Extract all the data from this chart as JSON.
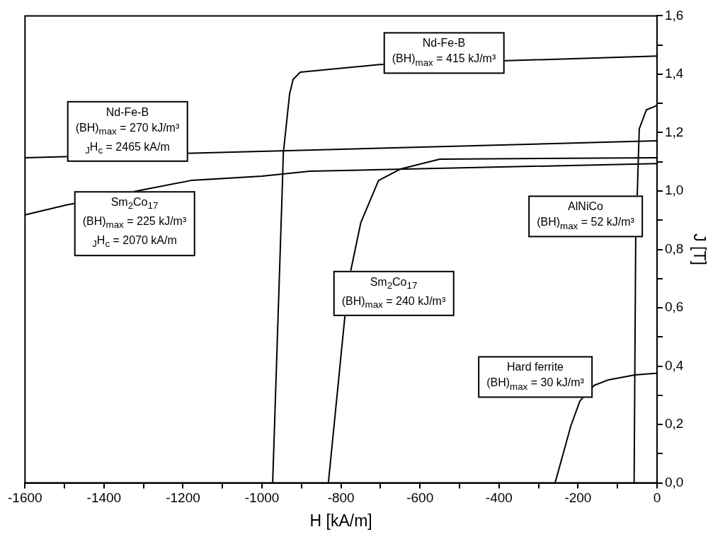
{
  "chart_data": {
    "type": "line",
    "xlabel": "H [kA/m]",
    "ylabel": "J [T]",
    "xlim": [
      -1600,
      0
    ],
    "ylim": [
      0,
      1.6
    ],
    "xticks": [
      -1600,
      {
        "value": -1500,
        "label": null
      },
      -1400,
      {
        "value": -1300,
        "label": null
      },
      -1200,
      {
        "value": -1100,
        "label": null
      },
      -1000,
      {
        "value": -900,
        "label": null
      },
      -800,
      {
        "value": -700,
        "label": null
      },
      -600,
      {
        "value": -500,
        "label": null
      },
      -400,
      {
        "value": -300,
        "label": null
      },
      -200,
      {
        "value": -100,
        "label": null
      },
      0
    ],
    "yticks": [
      {
        "value": 0,
        "label": "0,0"
      },
      {
        "value": 0.1,
        "label": null
      },
      {
        "value": 0.2,
        "label": "0,2"
      },
      {
        "value": 0.3,
        "label": null
      },
      {
        "value": 0.4,
        "label": "0,4"
      },
      {
        "value": 0.5,
        "label": null
      },
      {
        "value": 0.6,
        "label": "0,6"
      },
      {
        "value": 0.7,
        "label": null
      },
      {
        "value": 0.8,
        "label": "0,8"
      },
      {
        "value": 0.9,
        "label": null
      },
      {
        "value": 1.0,
        "label": "1,0"
      },
      {
        "value": 1.1,
        "label": null
      },
      {
        "value": 1.2,
        "label": "1,2"
      },
      {
        "value": 1.3,
        "label": null
      },
      {
        "value": 1.4,
        "label": "1,4"
      },
      {
        "value": 1.5,
        "label": null
      },
      {
        "value": 1.6,
        "label": "1,6"
      }
    ],
    "grid": false,
    "legend": false,
    "marker": "none",
    "line_style": "solid",
    "series": [
      {
        "color": "#000000",
        "x": [
          -973,
          -948,
          -946,
          -930,
          -921,
          -903,
          -703,
          0
        ],
        "values": [
          0,
          1.04,
          1.13,
          1.334,
          1.383,
          1.407,
          1.433,
          1.462
        ]
      },
      {
        "color": "#000000",
        "x": [
          -1600,
          0
        ],
        "values": [
          1.114,
          1.172
        ]
      },
      {
        "color": "#000000",
        "x": [
          -1600,
          -1495,
          -1317,
          -1180,
          -1000,
          -879,
          -699,
          0
        ],
        "values": [
          0.918,
          0.952,
          1.0,
          1.036,
          1.051,
          1.068,
          1.073,
          1.094
        ]
      },
      {
        "color": "#000000",
        "x": [
          -832,
          -791,
          -775,
          -750,
          -705,
          -650,
          -550,
          0
        ],
        "values": [
          0,
          0.559,
          0.729,
          0.891,
          1.036,
          1.075,
          1.109,
          1.114
        ]
      },
      {
        "color": "#000000",
        "x": [
          -58,
          -54,
          -50,
          -45,
          -27,
          -5,
          0
        ],
        "values": [
          0,
          0.83,
          0.988,
          1.213,
          1.278,
          1.29,
          1.295
        ]
      },
      {
        "color": "#000000",
        "x": [
          -258,
          -218,
          -195,
          -159,
          -123,
          -56,
          -5,
          0
        ],
        "values": [
          0,
          0.196,
          0.281,
          0.334,
          0.353,
          0.37,
          0.375,
          0.376
        ]
      }
    ],
    "annotations": [
      "Nd-Fe-B\n(BH)$_{max}$ = 415 kJ/m³",
      "Nd-Fe-B\n(BH)$_{max}$ = 270 kJ/m³\n$_{J}$H$_{c}$ = 2465 kA/m",
      "Sm$_{2}$Co$_{17}$\n(BH)$_{max}$ = 225 kJ/m³\n$_{J}$H$_{c}$ = 2070 kA/m",
      "AlNiCo\n(BH)$_{max}$ = 52 kJ/m³",
      "Sm$_{2}$Co$_{17}$\n(BH)$_{max}$ = 240 kJ/m³",
      "Hard ferrite\n(BH)$_{max}$ = 30 kJ/m³"
    ]
  }
}
